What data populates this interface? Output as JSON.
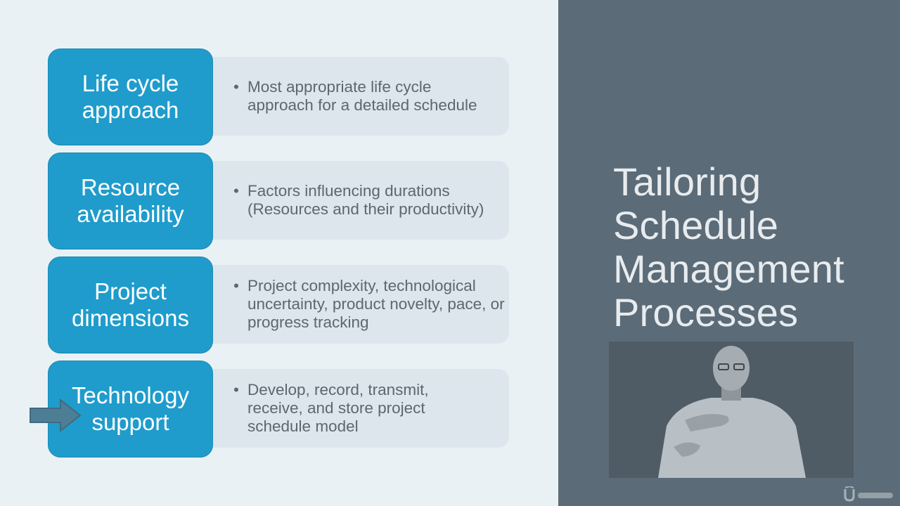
{
  "slide": {
    "title_lines": [
      "Tailoring",
      "Schedule",
      "Management",
      "Processes"
    ],
    "rows": [
      {
        "label_lines": [
          "Life cycle",
          "approach"
        ],
        "bullets": [
          "Most appropriate life cycle approach for a detailed schedule"
        ]
      },
      {
        "label_lines": [
          "Resource",
          "availability"
        ],
        "bullets": [
          "Factors influencing durations (Resources and their productivity)"
        ]
      },
      {
        "label_lines": [
          "Project",
          "dimensions"
        ],
        "bullets": [
          "Project complexity, technological uncertainty, product novelty, pace, or progress tracking"
        ]
      },
      {
        "label_lines": [
          "Technology",
          "support"
        ],
        "bullets": [
          "Develop, record, transmit, receive, and store project schedule model"
        ]
      }
    ]
  },
  "colors": {
    "label_fill": "#1f9ccc",
    "desc_fill": "#dde6ec",
    "panel_fill": "#5b6b77",
    "arrow_fill": "#4e7e95"
  },
  "icons": {
    "pointer": "arrow-right-icon",
    "presenter": "presenter-video",
    "watermark": "udemy-logo"
  }
}
